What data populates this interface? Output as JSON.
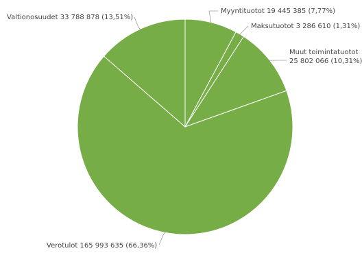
{
  "chart_data": {
    "type": "pie",
    "title": "",
    "legend": "none",
    "colors": {
      "slice": "#76ad46",
      "border": "#ffffff",
      "leader": "#9e9e9e",
      "label": "#444444"
    },
    "slices": [
      {
        "name": "Myyntituotot",
        "value": 19445385,
        "value_label": "19 445 385",
        "percent_label": "(7,77%)"
      },
      {
        "name": "Maksutuotot",
        "value": 3286610,
        "value_label": "3 286 610",
        "percent_label": "(1,31%)"
      },
      {
        "name": "Muut toimintatuotot",
        "value": 25802066,
        "value_label": "25 802 066",
        "percent_label": "(10,31%)"
      },
      {
        "name": "Verotulot",
        "value": 165993635,
        "value_label": "165 993 635",
        "percent_label": "(66,36%)"
      },
      {
        "name": "Valtionosuudet",
        "value": 33788878,
        "value_label": "33 788 878",
        "percent_label": "(13,51%)"
      }
    ]
  }
}
